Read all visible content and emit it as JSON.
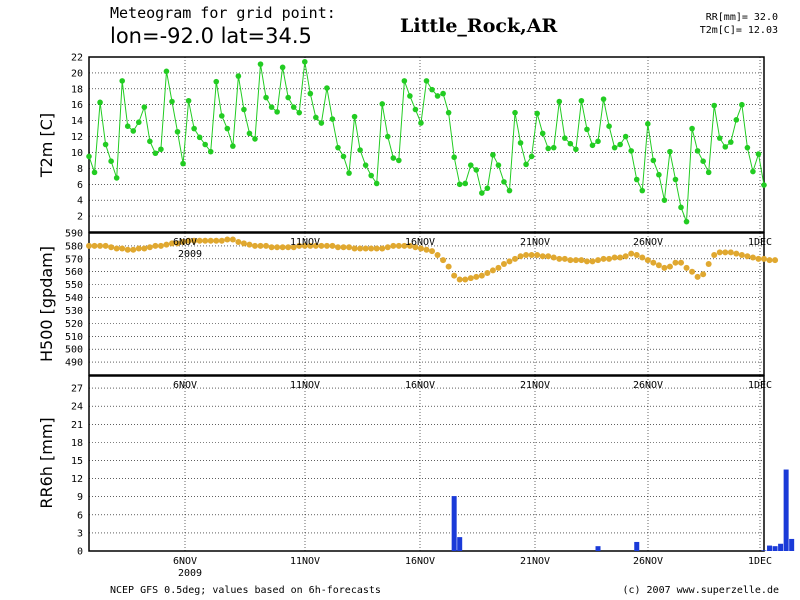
{
  "header": {
    "title_line1": "Meteogram for grid point:",
    "title_line2": "lon=-92.0 lat=34.5",
    "location": "Little_Rock,AR",
    "stat_rr": "RR[mm]= 32.0",
    "stat_t2m": "T2m[C]= 12.03"
  },
  "footer": {
    "left": "NCEP GFS 0.5deg; values based on 6h-forecasts",
    "right": "(c) 2007 www.superzelle.de"
  },
  "colors": {
    "temperature": "#22cc22",
    "height": "#e0a830",
    "precipitation": "#1a3ad8"
  },
  "chart_data": [
    {
      "type": "line",
      "ylabel": "T2m [C]",
      "ylim": [
        0,
        22
      ],
      "yticks": [
        "2",
        "4",
        "6",
        "8",
        "10",
        "12",
        "14",
        "16",
        "18",
        "20",
        "22"
      ],
      "xtick_labels": [
        "6NOV",
        "11NOV",
        "16NOV",
        "21NOV",
        "26NOV",
        "1DEC"
      ],
      "x_sub_label": "2009",
      "values": [
        9.5,
        7.5,
        16.3,
        11.0,
        8.9,
        6.8,
        19.0,
        13.3,
        12.7,
        13.8,
        15.7,
        11.4,
        9.9,
        10.4,
        20.2,
        16.4,
        12.6,
        8.6,
        16.5,
        13.0,
        11.9,
        11.0,
        10.1,
        18.9,
        14.6,
        13.0,
        10.8,
        19.6,
        15.4,
        12.4,
        11.7,
        21.1,
        16.9,
        15.7,
        15.1,
        20.7,
        16.9,
        15.7,
        15.0,
        21.4,
        17.4,
        14.4,
        13.7,
        18.1,
        14.2,
        10.6,
        9.5,
        7.4,
        14.5,
        10.3,
        8.4,
        7.1,
        6.1,
        16.1,
        12.0,
        9.3,
        9.0,
        19.0,
        17.1,
        15.4,
        13.7,
        19.0,
        17.9,
        17.1,
        17.4,
        15.0,
        9.4,
        6.0,
        6.1,
        8.4,
        7.8,
        4.9,
        5.5,
        9.7,
        8.4,
        6.3,
        5.2,
        15.0,
        11.2,
        8.5,
        9.5,
        14.9,
        12.4,
        10.5,
        10.6,
        16.4,
        11.8,
        11.1,
        10.4,
        16.5,
        12.9,
        10.9,
        11.4,
        16.7,
        13.3,
        10.6,
        11.0,
        12.0,
        10.2,
        6.6,
        5.2,
        13.6,
        9.0,
        7.2,
        4.0,
        10.1,
        6.6,
        3.1,
        1.3,
        13.0,
        10.2,
        8.9,
        7.5,
        15.9,
        11.8,
        10.7,
        11.3,
        14.1,
        16.0,
        10.6,
        7.6,
        9.8,
        5.9
      ]
    },
    {
      "type": "line",
      "ylabel": "H500 [gpdam]",
      "ylim": [
        480,
        590
      ],
      "yticks": [
        "490",
        "500",
        "510",
        "520",
        "530",
        "540",
        "550",
        "560",
        "570",
        "580",
        "590"
      ],
      "xtick_labels": [
        "6NOV",
        "11NOV",
        "16NOV",
        "21NOV",
        "26NOV",
        "1DEC"
      ],
      "x_sub_label": "2009",
      "values": [
        580,
        580,
        580,
        580,
        579,
        578,
        578,
        577,
        577,
        578,
        578,
        579,
        580,
        580,
        581,
        582,
        582,
        583,
        584,
        584,
        584,
        584,
        584,
        584,
        584,
        585,
        585,
        583,
        582,
        581,
        580,
        580,
        580,
        579,
        579,
        579,
        579,
        579,
        580,
        580,
        580,
        580,
        580,
        580,
        580,
        579,
        579,
        579,
        578,
        578,
        578,
        578,
        578,
        578,
        579,
        580,
        580,
        580,
        580,
        579,
        578,
        577,
        576,
        573,
        569,
        564,
        557,
        554,
        554,
        555,
        556,
        557,
        559,
        561,
        563,
        566,
        568,
        570,
        572,
        573,
        573,
        573,
        572,
        572,
        571,
        570,
        570,
        569,
        569,
        569,
        568,
        568,
        569,
        570,
        570,
        571,
        571,
        572,
        574,
        573,
        571,
        569,
        567,
        565,
        563,
        564,
        567,
        567,
        563,
        560,
        556,
        558,
        566,
        573,
        575,
        575,
        575,
        574,
        573,
        572,
        571,
        570,
        570,
        569,
        569
      ]
    },
    {
      "type": "bar",
      "ylabel": "RR6h [mm]",
      "ylim": [
        0,
        29
      ],
      "yticks": [
        "0",
        "3",
        "6",
        "9",
        "12",
        "15",
        "18",
        "21",
        "24",
        "27"
      ],
      "xtick_labels": [
        "6NOV",
        "11NOV",
        "16NOV",
        "21NOV",
        "26NOV",
        "1DEC"
      ],
      "x_sub_label": "2009",
      "values": [
        0,
        0,
        0,
        0,
        0,
        0,
        0,
        0,
        0,
        0,
        0,
        0,
        0,
        0,
        0,
        0,
        0,
        0,
        0,
        0,
        0,
        0,
        0,
        0,
        0,
        0,
        0,
        0,
        0,
        0,
        0,
        0,
        0,
        0,
        0,
        0,
        0,
        0,
        0,
        0,
        0,
        0,
        0,
        0,
        0,
        0,
        0,
        0,
        0,
        0,
        0,
        0,
        0,
        0,
        0,
        0,
        0,
        0,
        0,
        0,
        0,
        0,
        0,
        0,
        0,
        0,
        9.1,
        2.3,
        0,
        0,
        0,
        0,
        0,
        0,
        0,
        0,
        0,
        0,
        0,
        0,
        0,
        0,
        0,
        0,
        0,
        0,
        0,
        0,
        0,
        0,
        0,
        0,
        0.8,
        0,
        0,
        0,
        0,
        0,
        0,
        1.5,
        0,
        0,
        0,
        0,
        0,
        0,
        0,
        0,
        0,
        0,
        0,
        0,
        0,
        0,
        0,
        0,
        0,
        0,
        0,
        0,
        0,
        0,
        0.1,
        0.9,
        0.8,
        1.2,
        13.5,
        2.0,
        0
      ]
    }
  ]
}
